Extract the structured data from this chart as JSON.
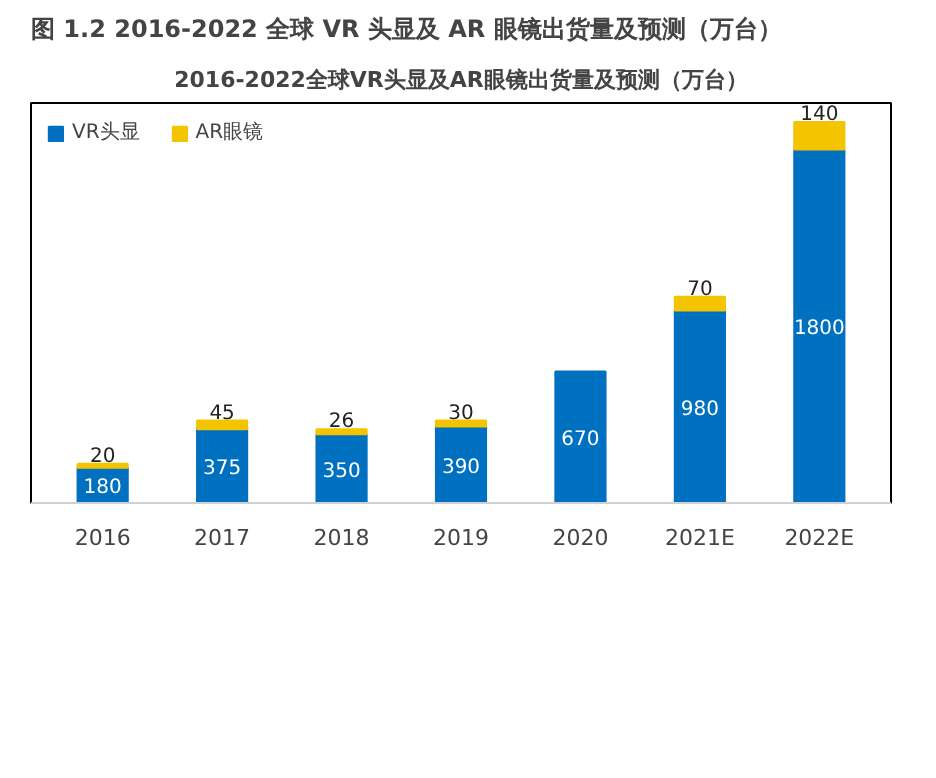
{
  "chart_data": {
    "type": "bar",
    "title": "图 1.2 2016-2022 全球 VR 头显及 AR 眼镜出货量及预测（万台）",
    "subtitle": "2016-2022全球VR头显及AR眼镜出货量及预测（万台）",
    "categories": [
      "2016",
      "2017",
      "2018",
      "2019",
      "2020",
      "2021E",
      "2022E"
    ],
    "stacked": true,
    "data_labels": true,
    "legend": "top left",
    "grid": false,
    "series": [
      {
        "name": "VR头显",
        "color": "#0070c0",
        "values": [
          180,
          375,
          350,
          390,
          670,
          980,
          1800
        ]
      },
      {
        "name": "AR眼镜",
        "color": "#f5c400",
        "values": [
          20,
          45,
          26,
          30,
          null,
          70,
          140
        ]
      }
    ]
  }
}
